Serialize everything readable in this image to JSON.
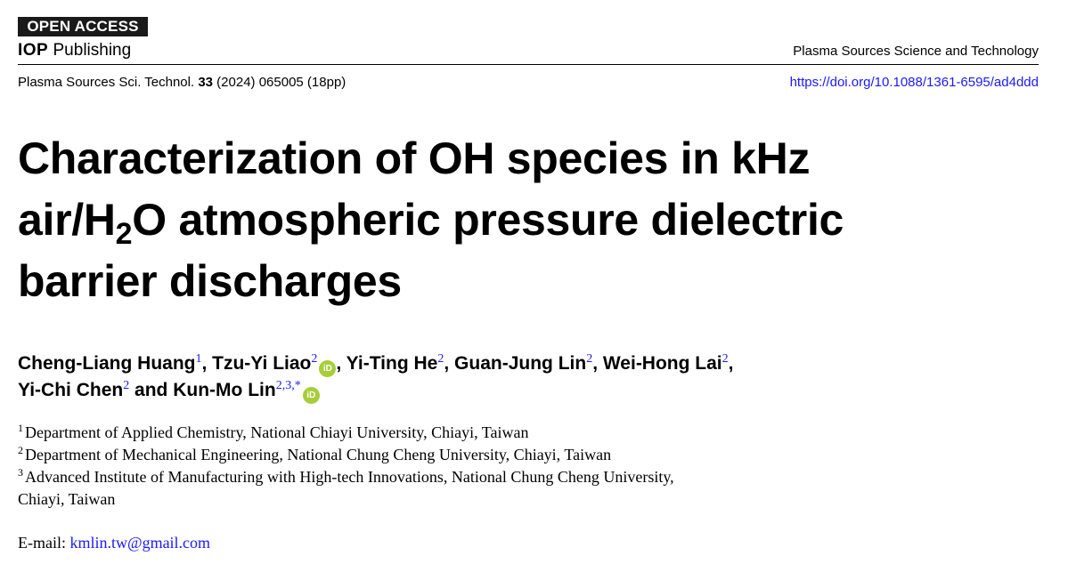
{
  "header": {
    "open_access": "OPEN ACCESS",
    "publisher_bold": "IOP",
    "publisher_rest": " Publishing",
    "journal": "Plasma Sources Science and Technology",
    "citation_pre": "Plasma Sources Sci. Technol. ",
    "citation_vol": "33",
    "citation_post": " (2024) 065005 (18pp)",
    "doi": "https://doi.org/10.1088/1361-6595/ad4ddd"
  },
  "title": {
    "line1": "Characterization of OH species in kHz",
    "line2_pre": "air/H",
    "line2_sub": "2",
    "line2_post": "O atmospheric pressure dielectric",
    "line3": "barrier discharges"
  },
  "authors": [
    {
      "name": "Cheng-Liang Huang",
      "sup": "1",
      "orcid": false,
      "sep": ", "
    },
    {
      "name": "Tzu-Yi Liao",
      "sup": "2",
      "orcid": true,
      "sep": ", "
    },
    {
      "name": "Yi-Ting He",
      "sup": "2",
      "orcid": false,
      "sep": ", "
    },
    {
      "name": "Guan-Jung Lin",
      "sup": "2",
      "orcid": false,
      "sep": ", "
    },
    {
      "name": "Wei-Hong Lai",
      "sup": "2",
      "orcid": false,
      "sep": ","
    },
    {
      "name": "Yi-Chi Chen",
      "sup": "2",
      "orcid": false,
      "sep": " and "
    },
    {
      "name": "Kun-Mo Lin",
      "sup": "2,3,*",
      "orcid": true,
      "sep": ""
    }
  ],
  "orcid_label": "iD",
  "affiliations": [
    {
      "num": "1",
      "text": "Department of Applied Chemistry, National Chiayi University, Chiayi, Taiwan"
    },
    {
      "num": "2",
      "text": "Department of Mechanical Engineering, National Chung Cheng University, Chiayi, Taiwan"
    },
    {
      "num": "3",
      "text": "Advanced Institute of Manufacturing with High-tech Innovations, National Chung Cheng University,",
      "cont": "Chiayi, Taiwan"
    }
  ],
  "email": {
    "label": "E-mail: ",
    "address": "kmlin.tw@gmail.com"
  },
  "colors": {
    "link": "#1a1aff",
    "orcid": "#a6ce39",
    "badge": "#1a1a1a"
  }
}
